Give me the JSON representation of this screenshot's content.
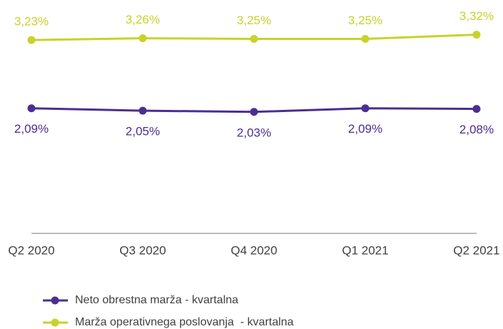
{
  "chart_data": {
    "type": "line",
    "categories": [
      "Q2 2020",
      "Q3 2020",
      "Q4 2020",
      "Q1 2021",
      "Q2 2021"
    ],
    "ylim": [
      0,
      3.5
    ],
    "series": [
      {
        "name": "Neto obrestna marža - kvartalna",
        "color": "#4b2e91",
        "values": [
          2.09,
          2.05,
          2.03,
          2.09,
          2.08
        ],
        "value_labels": [
          "2,09%",
          "2,05%",
          "2,03%",
          "2,09%",
          "2,08%"
        ]
      },
      {
        "name": "Marža operativnega poslovanja  - kvartalna",
        "color": "#c8d22a",
        "values": [
          3.23,
          3.26,
          3.25,
          3.25,
          3.32
        ],
        "value_labels": [
          "3,23%",
          "3,26%",
          "3,25%",
          "3,25%",
          "3,32%"
        ]
      }
    ]
  }
}
